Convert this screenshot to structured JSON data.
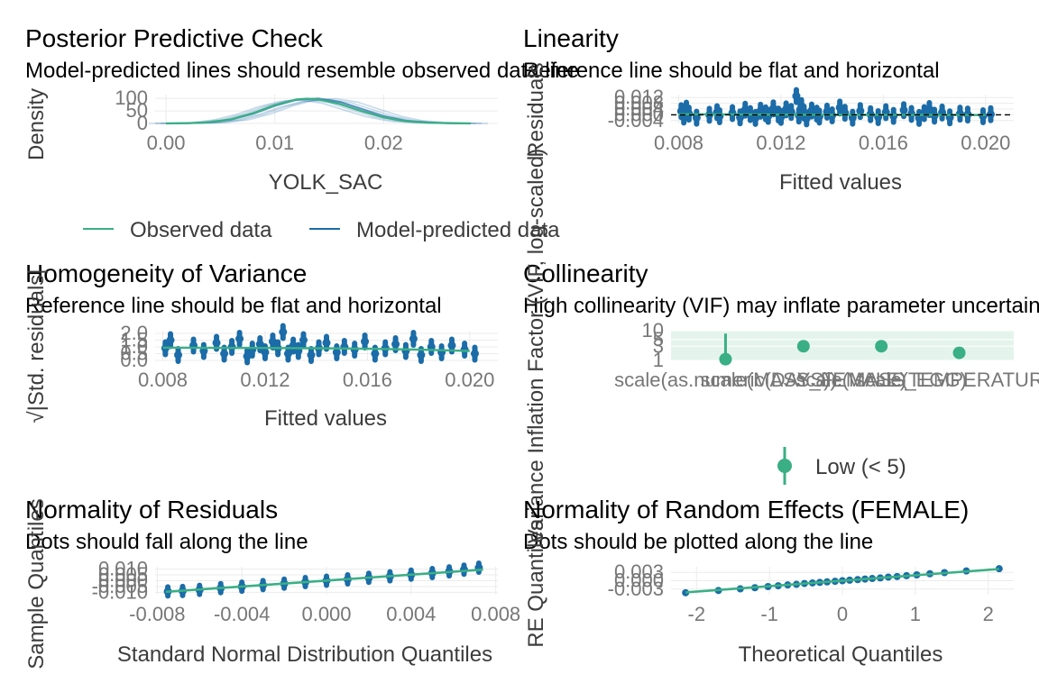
{
  "colors": {
    "observed": "#3aaf85",
    "model": "#1b6ca8",
    "reference": "#000000",
    "grid": "#ebebeb",
    "low_vif": "#3aaf85",
    "vif_band": "#d8efe6"
  },
  "chart_data": [
    {
      "id": "ppc",
      "type": "line",
      "title": "Posterior Predictive Check",
      "subtitle": "Model-predicted lines should resemble observed data line",
      "xlabel": "YOLK_SAC",
      "ylabel": "Density",
      "xlim": [
        -0.001,
        0.0305
      ],
      "ylim": [
        0,
        115
      ],
      "x_ticks": [
        0.0,
        0.01,
        0.02
      ],
      "x_tick_labels": [
        "0.00",
        "0.01",
        "0.02"
      ],
      "y_ticks": [
        0,
        50,
        100
      ],
      "y_tick_labels": [
        "0",
        "50",
        "100"
      ],
      "grid": true,
      "legend": {
        "position": "bottom",
        "entries": [
          "Observed data",
          "Model-predicted data"
        ]
      },
      "series": [
        {
          "name": "Observed data",
          "role": "observed",
          "x": [
            0.0,
            0.002,
            0.004,
            0.006,
            0.008,
            0.01,
            0.012,
            0.013,
            0.014,
            0.016,
            0.018,
            0.02,
            0.022,
            0.024,
            0.026,
            0.028
          ],
          "y": [
            0,
            1,
            5,
            17,
            41,
            73,
            96,
            99,
            96,
            77,
            49,
            24,
            9,
            3,
            1,
            0
          ]
        },
        {
          "name": "Model-predicted data",
          "role": "model",
          "x": [
            0.0,
            0.002,
            0.004,
            0.006,
            0.008,
            0.01,
            0.012,
            0.014,
            0.016,
            0.018,
            0.02,
            0.022,
            0.024,
            0.026,
            0.028
          ],
          "y": [
            0,
            1,
            4,
            15,
            38,
            70,
            94,
            100,
            86,
            57,
            29,
            11,
            4,
            1,
            0
          ]
        }
      ]
    },
    {
      "id": "linearity",
      "type": "scatter",
      "title": "Linearity",
      "subtitle": "Reference line should be flat and horizontal",
      "xlabel": "Fitted values",
      "ylabel": "Residuals",
      "xlim": [
        0.0077,
        0.0211
      ],
      "ylim": [
        -0.006,
        0.014
      ],
      "x_ticks": [
        0.008,
        0.012,
        0.016,
        0.02
      ],
      "x_tick_labels": [
        "0.008",
        "0.012",
        "0.016",
        "0.020"
      ],
      "y_ticks": [
        -0.004,
        0.0,
        0.004,
        0.008,
        0.012
      ],
      "y_tick_labels": [
        "-0.004",
        "0.000",
        "0.004",
        "0.008",
        "0.012"
      ],
      "grid": true,
      "reference_line_y": 0,
      "points": {
        "x": [
          0.0081,
          0.0082,
          0.0083,
          0.0084,
          0.0087,
          0.0092,
          0.0095,
          0.0096,
          0.0101,
          0.0104,
          0.0106,
          0.0108,
          0.011,
          0.0112,
          0.0114,
          0.0115,
          0.0117,
          0.0119,
          0.012,
          0.0122,
          0.0124,
          0.0126,
          0.0127,
          0.0128,
          0.0129,
          0.013,
          0.0132,
          0.0134,
          0.0135,
          0.0138,
          0.014,
          0.0143,
          0.0145,
          0.0148,
          0.0151,
          0.0155,
          0.0158,
          0.0161,
          0.0164,
          0.0168,
          0.0171,
          0.0174,
          0.0176,
          0.0178,
          0.018,
          0.0183,
          0.0186,
          0.019,
          0.0193,
          0.0199,
          0.0202
        ],
        "y": [
          0.0025,
          -0.0012,
          0.0042,
          0.0008,
          -0.002,
          0.0,
          0.0018,
          -0.001,
          0.0012,
          -0.0018,
          0.0035,
          0.0005,
          -0.0022,
          0.0028,
          0.001,
          -0.0008,
          0.0045,
          0.0002,
          -0.0015,
          0.0038,
          0.002,
          0.013,
          -0.0005,
          0.006,
          0.0015,
          -0.0025,
          0.003,
          0.0008,
          -0.0012,
          0.0022,
          -0.0004,
          0.005,
          0.0014,
          -0.002,
          0.0026,
          0.0004,
          -0.0016,
          0.0018,
          -0.0008,
          0.0032,
          0.0006,
          -0.0022,
          0.0012,
          0.004,
          -0.0006,
          0.0016,
          -0.0018,
          0.0008,
          0.0002,
          -0.001,
          0.0004
        ]
      },
      "smooth": {
        "x": [
          0.008,
          0.01,
          0.012,
          0.014,
          0.016,
          0.018,
          0.02
        ],
        "y": [
          0.0004,
          0.0003,
          0.0001,
          0.0,
          -0.0001,
          -0.0001,
          -0.0002
        ]
      }
    },
    {
      "id": "homogeneity",
      "type": "scatter",
      "title": "Homogeneity of Variance",
      "subtitle": "Reference line should be flat and horizontal",
      "xlabel": "Fitted values",
      "ylabel": "√|Std. residuals|",
      "xlim": [
        0.0077,
        0.0211
      ],
      "ylim": [
        0,
        2.2
      ],
      "x_ticks": [
        0.008,
        0.012,
        0.016,
        0.02
      ],
      "x_tick_labels": [
        "0.008",
        "0.012",
        "0.016",
        "0.020"
      ],
      "y_ticks": [
        0.0,
        0.5,
        1.0,
        1.5,
        2.0
      ],
      "y_tick_labels": [
        "0.0",
        "0.5",
        "1.0",
        "1.5",
        "2.0"
      ],
      "grid": true,
      "points": {
        "x": [
          0.0081,
          0.0083,
          0.0086,
          0.0092,
          0.0096,
          0.0101,
          0.0104,
          0.0107,
          0.011,
          0.0113,
          0.0115,
          0.0118,
          0.012,
          0.0123,
          0.0125,
          0.0127,
          0.0129,
          0.0131,
          0.0133,
          0.0135,
          0.0138,
          0.0141,
          0.0144,
          0.0148,
          0.0151,
          0.0155,
          0.0159,
          0.0163,
          0.0167,
          0.0171,
          0.0175,
          0.0178,
          0.0181,
          0.0185,
          0.0189,
          0.0193,
          0.0198,
          0.0202
        ],
        "y": [
          0.9,
          1.5,
          0.4,
          1.1,
          0.7,
          1.3,
          0.5,
          1.0,
          1.6,
          0.3,
          0.8,
          1.2,
          0.6,
          1.4,
          0.9,
          2.1,
          0.5,
          1.1,
          0.7,
          1.5,
          0.4,
          0.9,
          1.3,
          0.6,
          1.0,
          0.8,
          1.4,
          0.5,
          0.9,
          1.2,
          0.7,
          1.6,
          0.4,
          1.0,
          0.6,
          1.1,
          0.8,
          0.5
        ]
      },
      "smooth": {
        "x": [
          0.008,
          0.01,
          0.012,
          0.014,
          0.016,
          0.018,
          0.02
        ],
        "y": [
          0.95,
          0.93,
          0.92,
          0.9,
          0.86,
          0.8,
          0.7
        ]
      }
    },
    {
      "id": "collinearity",
      "type": "scatter",
      "title": "Collinearity",
      "subtitle": "High collinearity (VIF) may inflate parameter uncertainty",
      "xlabel": "",
      "ylabel": "Variance Inflation Factor (VIF, log-scaled)",
      "y_scale": "log",
      "ylim": [
        1,
        10
      ],
      "y_ticks": [
        1,
        3,
        5,
        10
      ],
      "y_tick_labels": [
        "1",
        "3",
        "5",
        "10"
      ],
      "categories": [
        "scale(as.numeric(DAYS))",
        "scale(MASS_FEMALE)",
        "scale(MASS_EGG)",
        "scale(TEMPERATURE)"
      ],
      "values": [
        1.1,
        3.0,
        3.0,
        1.8
      ],
      "ci_upper": [
        8.0,
        3.0,
        3.0,
        1.8
      ],
      "grid": true,
      "legend": {
        "position": "bottom",
        "entries": [
          "Low (< 5)"
        ]
      }
    },
    {
      "id": "normality_resid",
      "type": "scatter",
      "title": "Normality of Residuals",
      "subtitle": "Dots should fall along the line",
      "xlabel": "Standard Normal Distribution Quantiles",
      "ylabel": "Sample Quantiles",
      "xlim": [
        -0.0081,
        0.0081
      ],
      "ylim": [
        -0.012,
        0.012
      ],
      "x_ticks": [
        -0.008,
        -0.004,
        0.0,
        0.004,
        0.008
      ],
      "x_tick_labels": [
        "-0.008",
        "-0.004",
        "0.000",
        "0.004",
        "0.008"
      ],
      "y_ticks": [
        -0.01,
        -0.005,
        0.0,
        0.005,
        0.01
      ],
      "y_tick_labels": [
        "-0.010",
        "-0.005",
        "0.000",
        "0.005",
        "0.010"
      ],
      "grid": true,
      "points": {
        "x": [
          -0.0075,
          -0.0068,
          -0.006,
          -0.005,
          -0.004,
          -0.003,
          -0.002,
          -0.001,
          0.0,
          0.001,
          0.002,
          0.003,
          0.004,
          0.005,
          0.0058,
          0.0065,
          0.0072
        ],
        "y": [
          -0.0092,
          -0.0088,
          -0.0078,
          -0.0064,
          -0.0051,
          -0.0038,
          -0.0025,
          -0.0012,
          0.0,
          0.0012,
          0.0025,
          0.0038,
          0.0052,
          0.0066,
          0.008,
          0.0095,
          0.0112
        ]
      },
      "reference_line": {
        "x": [
          -0.0076,
          0.0074
        ],
        "y": [
          -0.0095,
          0.0095
        ]
      }
    },
    {
      "id": "normality_re",
      "type": "scatter",
      "title": "Normality of Random Effects (FEMALE)",
      "subtitle": "Dots should be plotted along the line",
      "xlabel": "Theoretical Quantiles",
      "ylabel": "RE Quantiles",
      "xlim": [
        -2.35,
        2.35
      ],
      "ylim": [
        -0.005,
        0.005
      ],
      "x_ticks": [
        -2,
        -1,
        0,
        1,
        2
      ],
      "x_tick_labels": [
        "-2",
        "-1",
        "0",
        "1",
        "2"
      ],
      "y_ticks": [
        -0.003,
        0.0,
        0.003
      ],
      "y_tick_labels": [
        "-0.003",
        "0.000",
        "0.003"
      ],
      "grid": true,
      "points": {
        "x": [
          -2.15,
          -1.7,
          -1.4,
          -1.2,
          -1.02,
          -0.88,
          -0.75,
          -0.63,
          -0.52,
          -0.41,
          -0.31,
          -0.21,
          -0.1,
          0.0,
          0.1,
          0.21,
          0.31,
          0.41,
          0.52,
          0.63,
          0.75,
          0.88,
          1.02,
          1.2,
          1.4,
          1.7,
          2.15
        ],
        "y": [
          -0.0043,
          -0.0035,
          -0.0029,
          -0.0025,
          -0.0021,
          -0.0018,
          -0.0015,
          -0.0013,
          -0.001,
          -0.0008,
          -0.0006,
          -0.0004,
          -0.0002,
          0.0,
          0.0002,
          0.0004,
          0.0006,
          0.0008,
          0.001,
          0.0013,
          0.0015,
          0.0018,
          0.0021,
          0.0025,
          0.0029,
          0.0035,
          0.0043
        ]
      },
      "reference_line": {
        "x": [
          -2.15,
          2.15
        ],
        "y": [
          -0.0042,
          0.0042
        ]
      }
    }
  ]
}
